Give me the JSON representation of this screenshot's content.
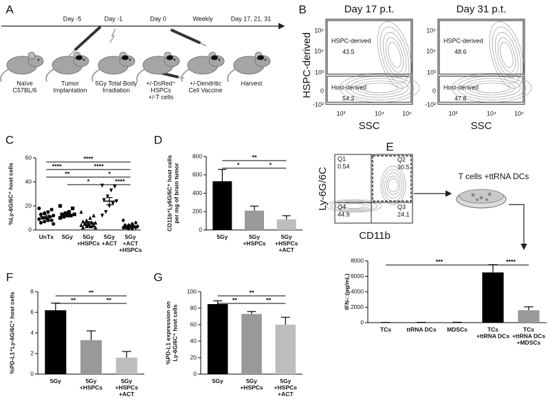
{
  "panel_labels": [
    "A",
    "B",
    "C",
    "D",
    "E",
    "F",
    "G"
  ],
  "timeline": {
    "days": [
      "Day -5",
      "Day -1",
      "Day 0",
      "Weekly",
      "Day 17, 21, 31"
    ],
    "steps": [
      [
        "Naïve",
        "C57BL/6"
      ],
      [
        "Tumor",
        "Implantation"
      ],
      [
        "5Gy Total Body",
        "Irradiation"
      ],
      [
        "+/-DsRed⁺",
        "HSPCs",
        "+/-T cells"
      ],
      [
        "+/-Dendritic",
        "Cell Vaccine"
      ],
      [
        "Harvest"
      ]
    ]
  },
  "flow_b": {
    "y_label": "HSPC-derived",
    "x_ticks": [
      "10³",
      "10⁴",
      "10⁵"
    ],
    "y_ticks": [
      "10⁵",
      "10⁴",
      "10³",
      "0",
      "-10³"
    ],
    "plots": [
      {
        "title": "Day 17 p.t.",
        "x_label": "SSC",
        "gates": [
          {
            "name": "HSPC-derived",
            "value": 43.5
          },
          {
            "name": "Host-derived",
            "value": 54.2
          }
        ]
      },
      {
        "title": "Day 31 p.t.",
        "x_label": "SSC",
        "gates": [
          {
            "name": "HSPC-derived",
            "value": 48.6
          },
          {
            "name": "Host-derived",
            "value": 47.8
          }
        ]
      }
    ]
  },
  "flow_e": {
    "y_label": "Ly-6G/6C",
    "x_label": "CD11b",
    "culture_label": "T cells +ttRNA DCs",
    "quadrants": [
      {
        "name": "Q1",
        "value": 0.54
      },
      {
        "name": "Q2",
        "value": 30.5
      },
      {
        "name": "Q4",
        "value": 44.9
      },
      {
        "name": "Q3",
        "value": 24.1
      }
    ]
  },
  "chart_data": [
    {
      "type": "strip",
      "y_label": [
        "%Ly-6G/6C⁺ host cells"
      ],
      "categories": [
        "UnTx",
        "5Gy",
        "5Gy +HSPCs",
        "5Gy +ACT",
        "5Gy +ACT +HSPCs"
      ],
      "values": [
        11,
        13,
        6,
        24,
        3
      ],
      "errors": [
        1.5,
        1.5,
        1,
        3,
        0.5
      ],
      "points": [
        [
          18,
          17,
          15,
          14,
          13,
          12,
          11,
          10,
          10,
          9,
          8,
          8,
          7,
          6,
          5
        ],
        [
          20,
          18,
          15,
          14,
          13,
          13,
          12,
          12,
          11,
          10
        ],
        [
          15,
          12,
          10,
          8,
          7,
          6,
          6,
          5,
          5,
          4,
          4,
          3,
          3,
          2,
          2,
          3,
          4,
          5
        ],
        [
          37,
          36,
          33,
          28,
          25,
          24,
          22,
          20,
          15,
          12
        ],
        [
          8,
          6,
          5,
          4,
          4,
          3,
          3,
          3,
          2,
          2,
          2,
          1,
          1,
          2,
          3
        ]
      ],
      "markers": [
        "circle",
        "square",
        "triangle",
        "triangle-down",
        "diamond"
      ],
      "color": "#000000",
      "ylim": [
        0,
        60
      ],
      "yticks": [
        0,
        20,
        40,
        60
      ],
      "brackets": [
        {
          "from": "UnTx",
          "to": "5Gy +ACT +HSPCs",
          "label": "****"
        },
        {
          "from": "5Gy",
          "to": "5Gy +ACT +HSPCs",
          "label": "****"
        },
        {
          "from": "UnTx",
          "to": "5Gy +HSPCs",
          "label": "**"
        },
        {
          "from": "5Gy +HSPCs",
          "to": "5Gy +ACT +HSPCs",
          "label": "*"
        },
        {
          "from": "UnTx",
          "to": "5Gy",
          "label": "****"
        },
        {
          "from": "5Gy +ACT",
          "to": "5Gy +ACT +HSPCs",
          "label": "****"
        },
        {
          "from": "5Gy",
          "to": "5Gy +ACT",
          "label": "*"
        }
      ]
    },
    {
      "type": "bar",
      "y_label": [
        "CD11b⁺Ly6G/6C⁺ host cells",
        "per mg of brain tumor"
      ],
      "categories": [
        "5Gy",
        "5Gy +HSPCs",
        "5Gy +HSPCs +ACT"
      ],
      "values": [
        530,
        210,
        115
      ],
      "errors": [
        130,
        50,
        40
      ],
      "colors": [
        "#000000",
        "#999999",
        "#bdbdbd"
      ],
      "ylim": [
        0,
        800
      ],
      "yticks": [
        0,
        200,
        400,
        600,
        800
      ],
      "brackets": [
        {
          "from": "5Gy",
          "to": "5Gy +HSPCs +ACT",
          "label": "**"
        },
        {
          "from": "5Gy",
          "to": "5Gy +HSPCs",
          "label": "*"
        },
        {
          "from": "5Gy +HSPCs",
          "to": "5Gy +HSPCs +ACT",
          "label": "*"
        }
      ]
    },
    {
      "type": "bar",
      "y_label": [
        "IFN-□(pg/mL)"
      ],
      "categories": [
        "TCs",
        "ttRNA DCs",
        "MDSCs",
        "TCs +ttRNA DCs",
        "TCs +ttRNA DCs +MDSCs"
      ],
      "values": [
        20,
        30,
        40,
        6500,
        1600
      ],
      "errors": [
        10,
        10,
        10,
        1000,
        450
      ],
      "colors": [
        "#000000",
        "#000000",
        "#000000",
        "#000000",
        "#999999"
      ],
      "ylim": [
        0,
        8000
      ],
      "yticks": [
        0,
        2000,
        4000,
        6000,
        8000
      ],
      "brackets": [
        {
          "from": "TCs",
          "to": "TCs +ttRNA DCs",
          "label": "***"
        },
        {
          "from": "TCs +ttRNA DCs",
          "to": "TCs +ttRNA DCs +MDSCs",
          "label": "****"
        }
      ]
    },
    {
      "type": "bar",
      "y_label": [
        "%PD-L1⁺Ly-6G/6C⁺ host cells"
      ],
      "categories": [
        "5Gy",
        "5Gy +HSPCs",
        "5Gy +HSPCs +ACT"
      ],
      "values": [
        6.2,
        3.3,
        1.6
      ],
      "errors": [
        0.7,
        0.9,
        0.6
      ],
      "colors": [
        "#000000",
        "#999999",
        "#bdbdbd"
      ],
      "ylim": [
        0,
        8
      ],
      "yticks": [
        0,
        2,
        4,
        6,
        8
      ],
      "brackets": [
        {
          "from": "5Gy",
          "to": "5Gy +HSPCs +ACT",
          "label": "**"
        },
        {
          "from": "5Gy",
          "to": "5Gy +HSPCs",
          "label": "**"
        },
        {
          "from": "5Gy +HSPCs",
          "to": "5Gy +HSPCs +ACT",
          "label": "**"
        }
      ]
    },
    {
      "type": "bar",
      "y_label": [
        "%PD-L1 expression on",
        "Ly-6G/6C⁺ host cells"
      ],
      "categories": [
        "5Gy",
        "5Gy +HSPCs",
        "5Gy +HSPCs +ACT"
      ],
      "values": [
        85,
        73,
        60
      ],
      "errors": [
        4,
        3,
        9
      ],
      "colors": [
        "#000000",
        "#999999",
        "#bdbdbd"
      ],
      "ylim": [
        0,
        100
      ],
      "yticks": [
        0,
        20,
        40,
        60,
        80,
        100
      ],
      "brackets": [
        {
          "from": "5Gy",
          "to": "5Gy +HSPCs +ACT",
          "label": "**"
        },
        {
          "from": "5Gy",
          "to": "5Gy +HSPCs",
          "label": "**"
        },
        {
          "from": "5Gy +HSPCs",
          "to": "5Gy +HSPCs +ACT",
          "label": "**"
        }
      ]
    }
  ]
}
